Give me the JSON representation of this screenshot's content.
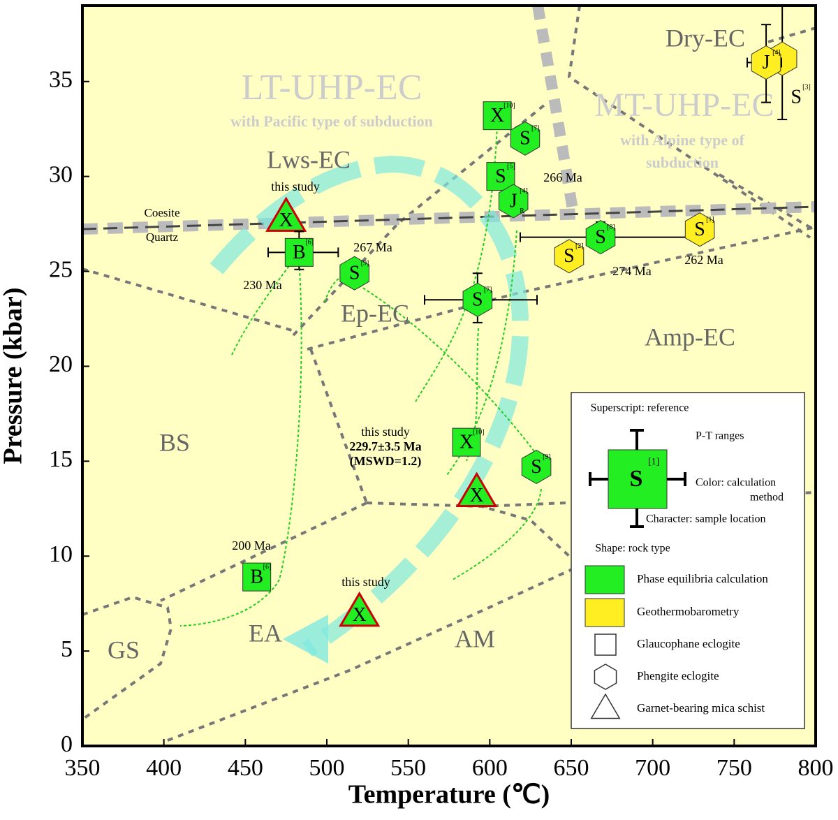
{
  "chart_data": {
    "type": "scatter",
    "x_label": "Temperature (℃)",
    "y_label": "Pressure (kbar)",
    "xlim": [
      350,
      800
    ],
    "ylim": [
      0,
      39
    ],
    "xticks": [
      350,
      400,
      450,
      500,
      550,
      600,
      650,
      700,
      750,
      800
    ],
    "yticks": [
      0,
      5,
      10,
      15,
      20,
      25,
      30,
      35
    ],
    "background": "#ffffc4",
    "fields": [
      "Dry-EC",
      "LT-UHP-EC",
      "with Pacific type of subduction",
      "MT-UHP-EC",
      "with Alpine type of",
      "subduction",
      "Lws-EC",
      "Ep-EC",
      "Amp-EC",
      "BS",
      "EA",
      "AM",
      "GS",
      "Coesite",
      "Quartz"
    ],
    "shapes": [
      {
        "name": "Glaucophane eclogite",
        "shape": "square"
      },
      {
        "name": "Phengite eclogite",
        "shape": "hexagon"
      },
      {
        "name": "Garnet-bearing mica schist",
        "shape": "triangle"
      }
    ],
    "series": [
      {
        "name": "Phase equilibria calculation",
        "color": "#22ee22",
        "points": [
          {
            "x": 475,
            "y": 27.8,
            "shape": "triangle",
            "label": "X",
            "notes": [
              "this study"
            ]
          },
          {
            "x": 483,
            "y": 26.0,
            "shape": "square",
            "label": "B",
            "sup": "[6]",
            "x_range": [
              464,
              507
            ],
            "y_range": [
              25.1,
              27.1
            ],
            "notes": [
              "230 Ma"
            ]
          },
          {
            "x": 517,
            "y": 24.9,
            "shape": "hexagon",
            "label": "S",
            "sup": "[9]",
            "notes": [
              "267 Ma"
            ]
          },
          {
            "x": 592.5,
            "y": 23.5,
            "shape": "hexagon",
            "label": "S",
            "sup": "[7]",
            "x_range": [
              560,
              629
            ],
            "y_range": [
              22.3,
              24.9
            ]
          },
          {
            "x": 604.6,
            "y": 33.2,
            "shape": "square",
            "label": "X",
            "sup": "[10]"
          },
          {
            "x": 621.7,
            "y": 32.0,
            "shape": "hexagon",
            "label": "S",
            "sup": "[7]"
          },
          {
            "x": 606.7,
            "y": 30.0,
            "shape": "square",
            "label": "S",
            "sup": "[5]"
          },
          {
            "x": 614.5,
            "y": 28.7,
            "shape": "hexagon",
            "label": "J",
            "sup": "[4]",
            "sub": "R",
            "notes": [
              "266 Ma"
            ]
          },
          {
            "x": 668,
            "y": 26.8,
            "shape": "hexagon",
            "label": "S",
            "sup": "[8]",
            "x_range": [
              618.7,
              728
            ],
            "y_range": [
              26.1,
              27.6
            ],
            "notes": [
              "274 Ma"
            ]
          },
          {
            "x": 585.7,
            "y": 16.0,
            "shape": "square",
            "label": "X",
            "sup": "[10]"
          },
          {
            "x": 628.6,
            "y": 14.7,
            "shape": "hexagon",
            "label": "S",
            "sup": "[9]"
          },
          {
            "x": 592,
            "y": 13.3,
            "shape": "triangle",
            "label": "X",
            "notes": [
              "this study",
              "229.7±3.5 Ma",
              "(MSWD=1.2)"
            ]
          },
          {
            "x": 457,
            "y": 8.9,
            "shape": "square",
            "label": "B",
            "sup": "[6]",
            "notes": [
              "200 Ma"
            ]
          },
          {
            "x": 520,
            "y": 7.0,
            "shape": "triangle",
            "label": "X",
            "notes": [
              "this study"
            ]
          }
        ]
      },
      {
        "name": "Geothermobarometry",
        "color": "#ffee22",
        "points": [
          {
            "x": 648.7,
            "y": 25.8,
            "shape": "hexagon",
            "label": "S",
            "sup": "[2]"
          },
          {
            "x": 728.9,
            "y": 27.2,
            "shape": "hexagon",
            "label": "S",
            "sup": "[1]",
            "notes": [
              "262 Ma"
            ]
          },
          {
            "x": 779.5,
            "y": 36.2,
            "shape": "hexagon",
            "label": "S",
            "sup": "[3]",
            "x_range": [
              765,
              786
            ],
            "y_range": [
              33.0,
              39.0
            ]
          },
          {
            "x": 769.6,
            "y": 36.0,
            "shape": "hexagon",
            "label": "J",
            "sup": "[4]",
            "x_range": [
              758,
              779
            ],
            "y_range": [
              33.9,
              38.0
            ]
          }
        ]
      }
    ],
    "legend_key": {
      "label": "S",
      "sup": "[1]",
      "texts": [
        "Superscript: reference",
        "P-T ranges",
        "Color: calculation",
        "method",
        "Character: sample location",
        "Shape: rock type"
      ]
    }
  }
}
